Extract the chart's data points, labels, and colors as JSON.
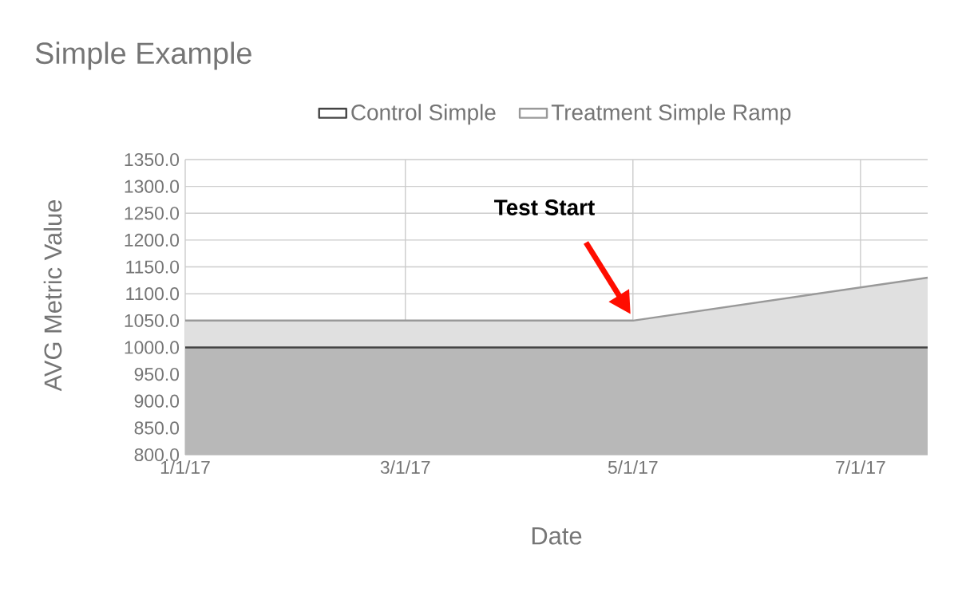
{
  "chart_data": {
    "type": "area",
    "title": "Simple Example",
    "xlabel": "Date",
    "ylabel": "AVG Metric Value",
    "series": [
      {
        "name": "Control  Simple",
        "color": "#444444",
        "x": [
          "2017-01-01",
          "2017-05-01",
          "2017-07-19"
        ],
        "values": [
          1000,
          1000,
          1000
        ]
      },
      {
        "name": "Treatment Simple Ramp",
        "color": "#999999",
        "x": [
          "2017-01-01",
          "2017-05-01",
          "2017-07-19"
        ],
        "values": [
          1050,
          1050,
          1130
        ]
      }
    ],
    "xlim": [
      "2017-01-01",
      "2017-07-19"
    ],
    "xticks": [
      {
        "value": "2017-01-01",
        "label": "1/1/17"
      },
      {
        "value": "2017-03-01",
        "label": "3/1/17"
      },
      {
        "value": "2017-05-01",
        "label": "5/1/17"
      },
      {
        "value": "2017-07-01",
        "label": "7/1/17"
      }
    ],
    "ylim": [
      800,
      1350
    ],
    "yticks": [
      {
        "value": 800,
        "label": "800.0"
      },
      {
        "value": 850,
        "label": "850.0"
      },
      {
        "value": 900,
        "label": "900.0"
      },
      {
        "value": 950,
        "label": "950.0"
      },
      {
        "value": 1000,
        "label": "1000.0"
      },
      {
        "value": 1050,
        "label": "1050.0"
      },
      {
        "value": 1100,
        "label": "1100.0"
      },
      {
        "value": 1150,
        "label": "1150.0"
      },
      {
        "value": 1200,
        "label": "1200.0"
      },
      {
        "value": 1250,
        "label": "1250.0"
      },
      {
        "value": 1300,
        "label": "1300.0"
      },
      {
        "value": 1350,
        "label": "1350.0"
      }
    ],
    "annotations": [
      "Test Start"
    ],
    "grid": true,
    "legend": "top"
  }
}
